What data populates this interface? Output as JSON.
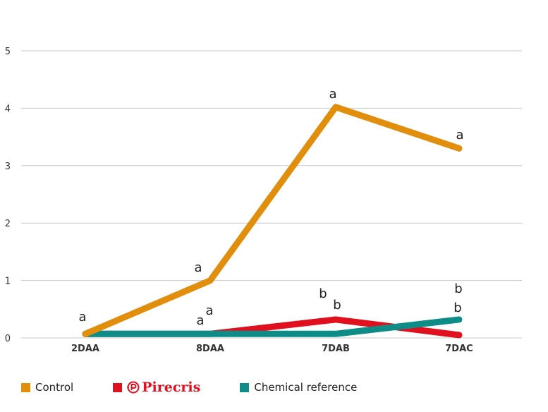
{
  "chart_data": {
    "type": "line",
    "categories": [
      "2DAA",
      "8DAA",
      "7DAB",
      "7DAC"
    ],
    "ylim": [
      0,
      5
    ],
    "yticks": [
      "0",
      "1",
      "2",
      "3",
      "4",
      "5"
    ],
    "grid": true,
    "legend_position": "bottom-left",
    "series": [
      {
        "name": "Control",
        "color": "#e08e0b",
        "values": [
          0.07,
          1.0,
          4.02,
          3.3
        ],
        "labels": [
          [
            "a"
          ],
          [
            "a"
          ],
          [
            "a"
          ],
          [
            "a"
          ]
        ]
      },
      {
        "name": "Pirecris",
        "color": "#e0101f",
        "values": [
          0.07,
          0.07,
          0.32,
          0.05
        ],
        "labels": [
          [],
          [
            "a"
          ],
          [
            "b"
          ],
          [
            "b"
          ]
        ]
      },
      {
        "name": "Chemical reference",
        "color": "#0e8c87",
        "values": [
          0.07,
          0.07,
          0.07,
          0.32
        ],
        "labels": [
          [],
          [
            "a"
          ],
          [
            "b"
          ],
          [
            "b"
          ]
        ]
      }
    ]
  },
  "legend": {
    "control": "Control",
    "pirecris": "Pirecris",
    "chemical_reference": "Chemical reference"
  }
}
